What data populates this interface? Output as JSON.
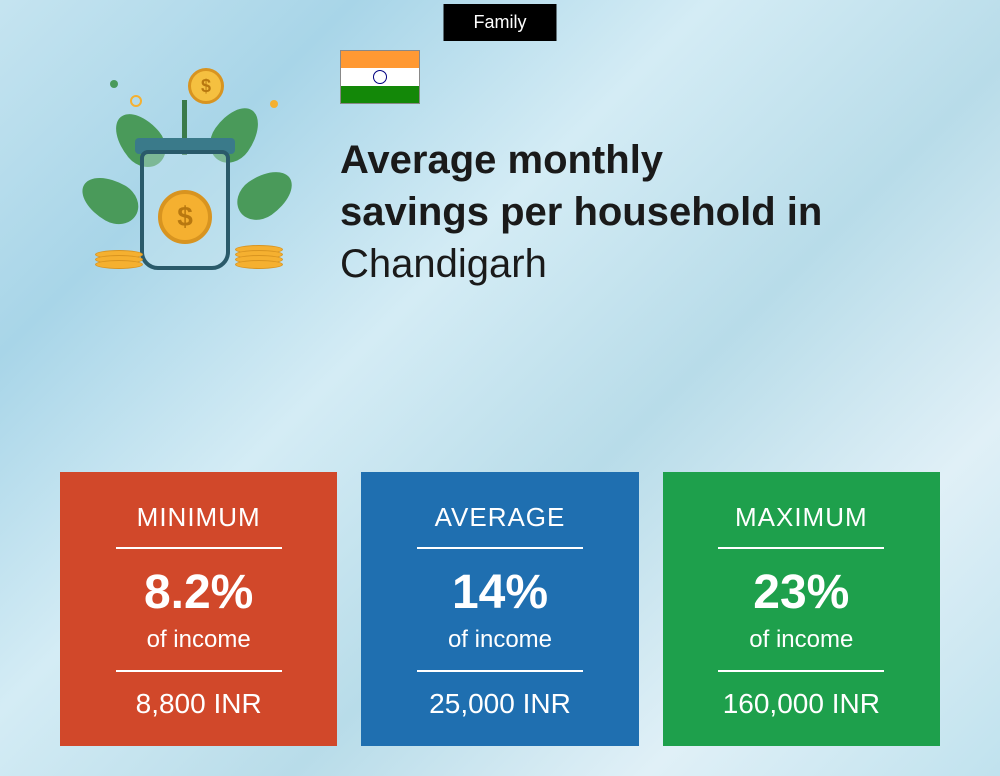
{
  "topLabel": "Family",
  "title": {
    "line1": "Average monthly",
    "line2": "savings per household in",
    "city": "Chandigarh"
  },
  "cards": [
    {
      "label": "MINIMUM",
      "percent": "8.2%",
      "unit": "of income",
      "amount": "8,800 INR",
      "bgColor": "#d1482a"
    },
    {
      "label": "AVERAGE",
      "percent": "14%",
      "unit": "of income",
      "amount": "25,000 INR",
      "bgColor": "#1f6fb0"
    },
    {
      "label": "MAXIMUM",
      "percent": "23%",
      "unit": "of income",
      "amount": "160,000 INR",
      "bgColor": "#1ea04c"
    }
  ],
  "illustration": {
    "coinSymbol": "$"
  }
}
